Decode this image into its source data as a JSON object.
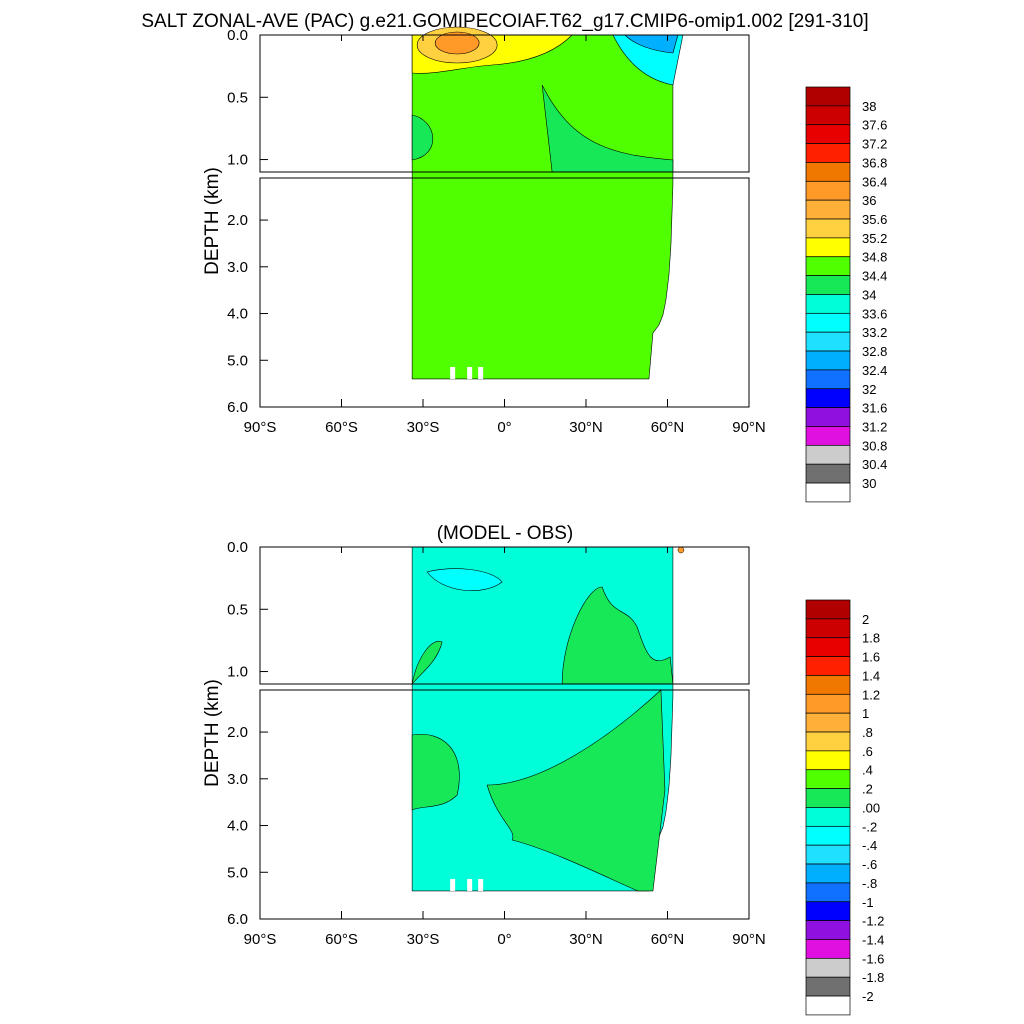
{
  "figure": {
    "title": "SALT ZONAL-AVE (PAC) g.e21.GOMIPECOIAF.T62_g17.CMIP6-omip1.002 [291-310]"
  },
  "chart_data": [
    {
      "type": "heatmap",
      "title": "SALT ZONAL-AVE (PAC) g.e21.GOMIPECOIAF.T62_g17.CMIP6-omip1.002 [291-310]",
      "ylabel": "DEPTH (km)",
      "xlabel": "",
      "x_ticks": [
        "90°S",
        "60°S",
        "30°S",
        "0°",
        "30°N",
        "60°N",
        "90°N"
      ],
      "x_tick_values": [
        -90,
        -60,
        -30,
        0,
        30,
        60,
        90
      ],
      "xlim": [
        -90,
        90
      ],
      "upper_panel": {
        "ylim": [
          0,
          1.1
        ],
        "y_ticks": [
          "0.0",
          "0.5",
          "1.0"
        ],
        "y_tick_values": [
          0,
          0.5,
          1.0
        ]
      },
      "lower_panel": {
        "ylim": [
          1.1,
          6.0
        ],
        "y_ticks": [
          "2.0",
          "3.0",
          "4.0",
          "5.0",
          "6.0"
        ],
        "y_tick_values": [
          2,
          3,
          4,
          5,
          6
        ]
      },
      "data_extent": {
        "lat_range": [
          -34,
          62
        ],
        "max_depth_km": 5.4
      },
      "dominant_value_range": [
        34.4,
        34.8
      ],
      "colorbar": {
        "labels": [
          "38",
          "37.6",
          "37.2",
          "36.8",
          "36.4",
          "36",
          "35.6",
          "35.2",
          "34.8",
          "34.4",
          "34",
          "33.6",
          "33.2",
          "32.8",
          "32.4",
          "32",
          "31.6",
          "31.2",
          "30.8",
          "30.4",
          "30"
        ],
        "colors": [
          "#b00000",
          "#cc0000",
          "#e80000",
          "#ff2000",
          "#f07800",
          "#ff9a28",
          "#ffb038",
          "#ffd040",
          "#ffff00",
          "#50ff00",
          "#16e858",
          "#00ffd8",
          "#00ffff",
          "#20e0ff",
          "#00b0ff",
          "#1070ff",
          "#0000ff",
          "#9010e0",
          "#e010e0",
          "#cccccc",
          "#707070",
          "#ffffff"
        ]
      }
    },
    {
      "type": "heatmap",
      "title": "(MODEL - OBS)",
      "ylabel": "DEPTH (km)",
      "xlabel": "",
      "x_ticks": [
        "90°S",
        "60°S",
        "30°S",
        "0°",
        "30°N",
        "60°N",
        "90°N"
      ],
      "x_tick_values": [
        -90,
        -60,
        -30,
        0,
        30,
        60,
        90
      ],
      "xlim": [
        -90,
        90
      ],
      "upper_panel": {
        "ylim": [
          0,
          1.1
        ],
        "y_ticks": [
          "0.0",
          "0.5",
          "1.0"
        ],
        "y_tick_values": [
          0,
          0.5,
          1.0
        ]
      },
      "lower_panel": {
        "ylim": [
          1.1,
          6.0
        ],
        "y_ticks": [
          "2.0",
          "3.0",
          "4.0",
          "5.0",
          "6.0"
        ],
        "y_tick_values": [
          2,
          3,
          4,
          5,
          6
        ]
      },
      "data_extent": {
        "lat_range": [
          -34,
          62
        ],
        "max_depth_km": 5.4
      },
      "dominant_value_range": [
        -0.2,
        0.0
      ],
      "colorbar": {
        "labels": [
          "2",
          "1.8",
          "1.6",
          "1.4",
          "1.2",
          "1",
          ".8",
          ".6",
          ".4",
          ".2",
          ".00",
          "-.2",
          "-.4",
          "-.6",
          "-.8",
          "-1",
          "-1.2",
          "-1.4",
          "-1.6",
          "-1.8",
          "-2"
        ],
        "colors": [
          "#b00000",
          "#cc0000",
          "#e80000",
          "#ff2000",
          "#f07800",
          "#ff9a28",
          "#ffb038",
          "#ffd040",
          "#ffff00",
          "#50ff00",
          "#16e858",
          "#00ffd8",
          "#00ffff",
          "#20e0ff",
          "#00b0ff",
          "#1070ff",
          "#0000ff",
          "#9010e0",
          "#e010e0",
          "#cccccc",
          "#707070",
          "#ffffff"
        ]
      }
    }
  ]
}
